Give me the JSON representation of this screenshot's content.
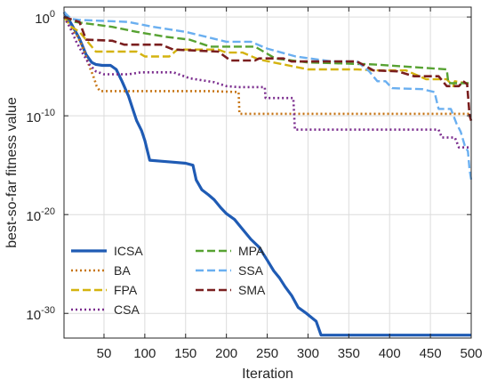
{
  "chart_data": {
    "type": "line",
    "title": "",
    "xlabel": "Iteration",
    "ylabel": "best-so-far fitness value",
    "xlim": [
      1,
      500
    ],
    "ylim_exponent": [
      -32.5,
      1
    ],
    "yscale": "log",
    "grid": true,
    "legend_position": "bottom-left",
    "x_ticks": [
      50,
      100,
      150,
      200,
      250,
      300,
      350,
      400,
      450,
      500
    ],
    "y_ticks": [
      {
        "exp": 0,
        "label": "10^0"
      },
      {
        "exp": -10,
        "label": "10^-10"
      },
      {
        "exp": -20,
        "label": "10^-20"
      },
      {
        "exp": -30,
        "label": "10^-30"
      }
    ],
    "series": [
      {
        "name": "ICSA",
        "color": "#1f5bb4",
        "dash": "solid",
        "width": 3.2,
        "points": [
          [
            1,
            0.5
          ],
          [
            5,
            0
          ],
          [
            12,
            -1
          ],
          [
            20,
            -2.2
          ],
          [
            28,
            -3.8
          ],
          [
            35,
            -4.6
          ],
          [
            40,
            -4.8
          ],
          [
            48,
            -4.9
          ],
          [
            58,
            -4.9
          ],
          [
            65,
            -5.3
          ],
          [
            72,
            -6.5
          ],
          [
            80,
            -8
          ],
          [
            86,
            -9.5
          ],
          [
            90,
            -10.5
          ],
          [
            96,
            -11.5
          ],
          [
            100,
            -12.5
          ],
          [
            106,
            -14.5
          ],
          [
            120,
            -14.6
          ],
          [
            135,
            -14.7
          ],
          [
            150,
            -14.8
          ],
          [
            159,
            -15
          ],
          [
            163,
            -16.5
          ],
          [
            170,
            -17.5
          ],
          [
            178,
            -18
          ],
          [
            185,
            -18.5
          ],
          [
            193,
            -19.3
          ],
          [
            200,
            -19.9
          ],
          [
            210,
            -20.5
          ],
          [
            220,
            -21.5
          ],
          [
            230,
            -22.5
          ],
          [
            240,
            -23.3
          ],
          [
            250,
            -24.6
          ],
          [
            258,
            -25.7
          ],
          [
            265,
            -26.4
          ],
          [
            272,
            -27.3
          ],
          [
            280,
            -28.2
          ],
          [
            288,
            -29.4
          ],
          [
            298,
            -30
          ],
          [
            310,
            -30.8
          ],
          [
            316,
            -32.2
          ],
          [
            400,
            -32.2
          ],
          [
            500,
            -32.2
          ]
        ]
      },
      {
        "name": "BA",
        "color": "#c77617",
        "dash": "dotted",
        "width": 2.6,
        "points": [
          [
            1,
            0
          ],
          [
            8,
            -1
          ],
          [
            18,
            -2
          ],
          [
            26,
            -3.5
          ],
          [
            32,
            -5
          ],
          [
            37,
            -6
          ],
          [
            41,
            -7
          ],
          [
            45,
            -7.5
          ],
          [
            180,
            -7.5
          ],
          [
            215,
            -7.6
          ],
          [
            216,
            -9.8
          ],
          [
            500,
            -9.8
          ]
        ]
      },
      {
        "name": "FPA",
        "color": "#d4b30f",
        "dash": "dashed",
        "width": 2.4,
        "points": [
          [
            1,
            0
          ],
          [
            10,
            -1
          ],
          [
            20,
            -1.5
          ],
          [
            30,
            -2.5
          ],
          [
            40,
            -3.5
          ],
          [
            60,
            -3.5
          ],
          [
            90,
            -3.5
          ],
          [
            100,
            -4
          ],
          [
            130,
            -4
          ],
          [
            140,
            -3.3
          ],
          [
            190,
            -3.3
          ],
          [
            200,
            -3.6
          ],
          [
            220,
            -3.6
          ],
          [
            240,
            -4.3
          ],
          [
            300,
            -5.3
          ],
          [
            360,
            -5.3
          ],
          [
            380,
            -5.4
          ],
          [
            420,
            -5.4
          ],
          [
            445,
            -6.3
          ],
          [
            470,
            -6.3
          ],
          [
            478,
            -7
          ],
          [
            480,
            -6.5
          ],
          [
            500,
            -6.8
          ]
        ]
      },
      {
        "name": "CSA",
        "color": "#7b2d8e",
        "dash": "dotted",
        "width": 2.6,
        "points": [
          [
            1,
            0
          ],
          [
            8,
            -1
          ],
          [
            16,
            -2.5
          ],
          [
            24,
            -3.7
          ],
          [
            32,
            -4.8
          ],
          [
            40,
            -5.5
          ],
          [
            50,
            -5.8
          ],
          [
            80,
            -5.8
          ],
          [
            95,
            -5.6
          ],
          [
            135,
            -5.6
          ],
          [
            155,
            -6.2
          ],
          [
            185,
            -6.6
          ],
          [
            200,
            -7
          ],
          [
            215,
            -7.1
          ],
          [
            247,
            -7.1
          ],
          [
            248,
            -8.2
          ],
          [
            282,
            -8.2
          ],
          [
            284,
            -11.4
          ],
          [
            460,
            -11.4
          ],
          [
            464,
            -12.2
          ],
          [
            480,
            -12.2
          ],
          [
            485,
            -13.2
          ],
          [
            500,
            -13.2
          ]
        ]
      },
      {
        "name": "MPA",
        "color": "#57a232",
        "dash": "dashed",
        "width": 2.4,
        "points": [
          [
            1,
            0
          ],
          [
            15,
            -0.5
          ],
          [
            60,
            -1
          ],
          [
            90,
            -1.5
          ],
          [
            125,
            -2
          ],
          [
            155,
            -2.3
          ],
          [
            180,
            -3
          ],
          [
            235,
            -3
          ],
          [
            260,
            -4.2
          ],
          [
            300,
            -4.6
          ],
          [
            380,
            -4.8
          ],
          [
            470,
            -5.3
          ],
          [
            472,
            -6.7
          ],
          [
            500,
            -6.7
          ]
        ]
      },
      {
        "name": "SSA",
        "color": "#6aaff0",
        "dash": "dashed",
        "width": 2.4,
        "points": [
          [
            1,
            0.5
          ],
          [
            10,
            -0.2
          ],
          [
            20,
            -0.3
          ],
          [
            50,
            -0.4
          ],
          [
            80,
            -0.5
          ],
          [
            110,
            -1
          ],
          [
            150,
            -1.5
          ],
          [
            200,
            -2.5
          ],
          [
            230,
            -2.5
          ],
          [
            250,
            -3.2
          ],
          [
            285,
            -4
          ],
          [
            330,
            -4.5
          ],
          [
            360,
            -4.5
          ],
          [
            375,
            -5.5
          ],
          [
            385,
            -6.5
          ],
          [
            395,
            -6.5
          ],
          [
            403,
            -7.2
          ],
          [
            440,
            -7.3
          ],
          [
            455,
            -7.6
          ],
          [
            460,
            -9.3
          ],
          [
            475,
            -9.3
          ],
          [
            482,
            -10.8
          ],
          [
            487,
            -11.6
          ],
          [
            492,
            -13
          ],
          [
            496,
            -13.6
          ],
          [
            498,
            -15.5
          ],
          [
            500,
            -16.5
          ]
        ]
      },
      {
        "name": "SMA",
        "color": "#7a1f1f",
        "dash": "dashed",
        "width": 2.6,
        "points": [
          [
            1,
            0
          ],
          [
            20,
            -0.5
          ],
          [
            28,
            -2.3
          ],
          [
            60,
            -2.4
          ],
          [
            75,
            -2.8
          ],
          [
            120,
            -2.8
          ],
          [
            135,
            -3.3
          ],
          [
            190,
            -3.5
          ],
          [
            205,
            -4.4
          ],
          [
            235,
            -4.4
          ],
          [
            240,
            -4.2
          ],
          [
            270,
            -4.2
          ],
          [
            280,
            -4.5
          ],
          [
            360,
            -4.5
          ],
          [
            380,
            -5.4
          ],
          [
            410,
            -5.5
          ],
          [
            430,
            -6
          ],
          [
            460,
            -6
          ],
          [
            470,
            -7
          ],
          [
            485,
            -7
          ],
          [
            490,
            -6.5
          ],
          [
            495,
            -6.8
          ],
          [
            498,
            -10
          ],
          [
            500,
            -10.5
          ]
        ]
      }
    ]
  }
}
